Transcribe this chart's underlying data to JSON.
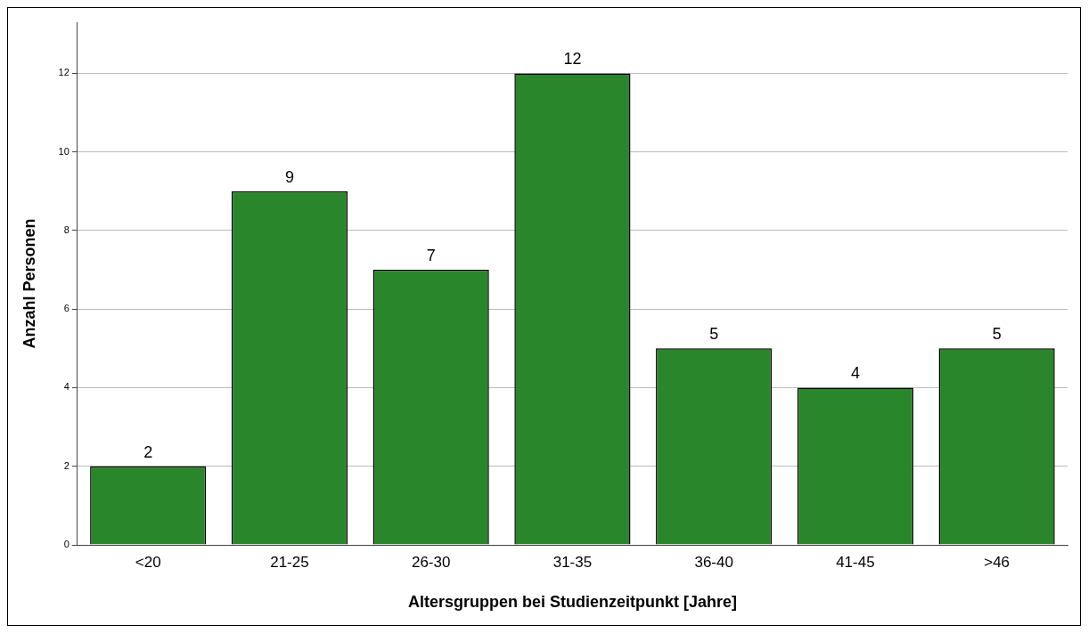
{
  "chart_data": {
    "type": "bar",
    "xlabel": "Altersgruppen bei Studienzeitpunkt [Jahre]",
    "ylabel": "Anzahl Personen",
    "categories": [
      "<20",
      "21-25",
      "26-30",
      "31-35",
      "36-40",
      "41-45",
      ">46"
    ],
    "values": [
      2,
      9,
      7,
      12,
      5,
      4,
      5
    ],
    "color": "#2a862a",
    "ylim": [
      0,
      13.3
    ],
    "yticks": [
      0,
      2,
      4,
      6,
      8,
      10,
      12
    ],
    "grid": "y",
    "data_labels": true,
    "legend": false
  }
}
